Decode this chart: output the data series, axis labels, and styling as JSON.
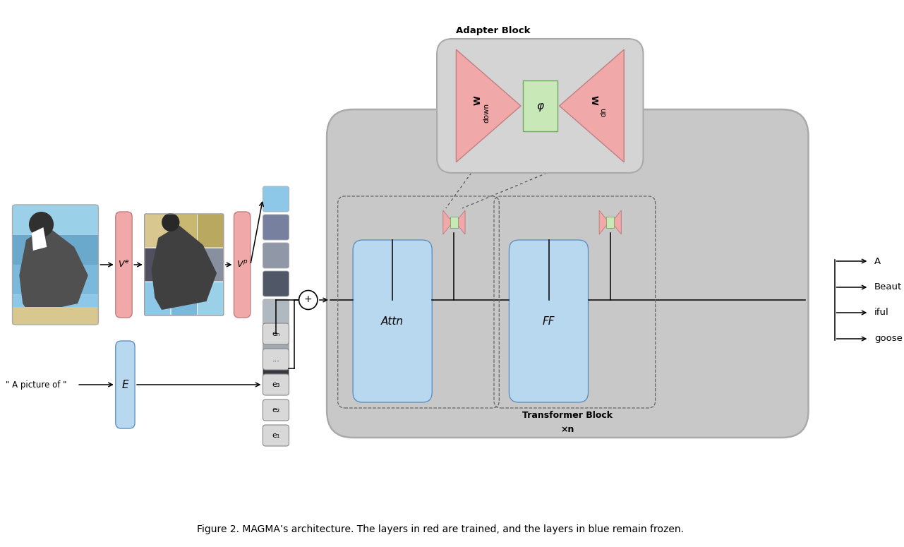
{
  "fig_width": 12.81,
  "fig_height": 7.75,
  "bg_color": "#ffffff",
  "caption": "Figure 2. MAGMA’s architecture. The layers in red are trained, and the layers in blue remain frozen.",
  "caption_fontsize": 10,
  "pink": "#f0a8a8",
  "light_blue": "#b8d8f0",
  "light_green": "#c8e8b8",
  "gray_bg": "#c8c8c8",
  "adapter_bg": "#d4d4d4",
  "adapter_label": "Adapter Block",
  "transformer_label": "Transformer Block",
  "transformer_sub": "×n",
  "attn_label": "Attn",
  "ff_label": "FF",
  "phi_label": "φ",
  "output_labels": [
    "A",
    "Beaut",
    "iful",
    "goose"
  ],
  "embed_labels": [
    "e₁",
    "e₂",
    "e₃",
    "...",
    "eₙ"
  ],
  "input_text": "\" A picture of \""
}
